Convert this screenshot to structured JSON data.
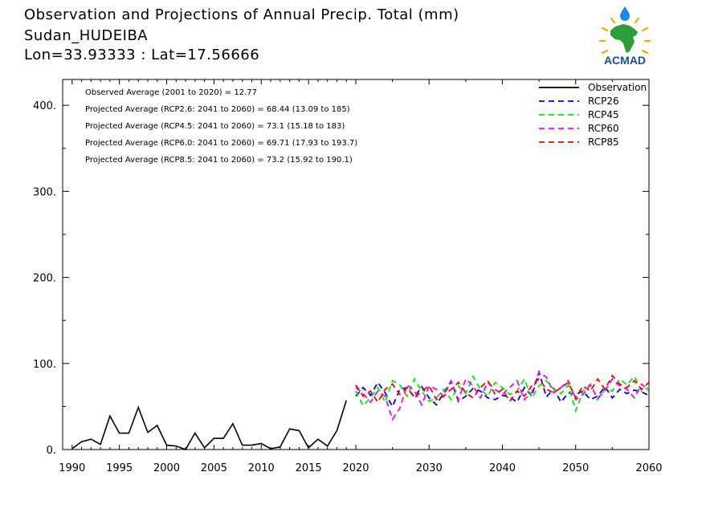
{
  "header": {
    "title": "Observation and Projections of Annual Precip. Total (mm)",
    "location": "Sudan_HUDEIBA",
    "coords": "Lon=33.93333 : Lat=17.56666"
  },
  "logo": {
    "text": "ACMAD",
    "icon": "africa-raindrop-logo"
  },
  "colors": {
    "observation": "#000000",
    "RCP26": "#0000ff",
    "RCP45": "#00ee00",
    "RCP60": "#ff00ff",
    "RCP85": "#ff0000"
  },
  "chart_data": {
    "type": "line",
    "xlim": [
      1989,
      2060
    ],
    "ylim": [
      0,
      430
    ],
    "xticks": [
      1990,
      1995,
      2000,
      2005,
      2010,
      2015,
      2020,
      2030,
      2040,
      2050,
      2060
    ],
    "yticks": [
      0,
      100,
      200,
      300,
      400
    ],
    "ytick_labels": [
      "0.",
      "100.",
      "200.",
      "300.",
      "400."
    ],
    "annotations": [
      "Observed Average (2001 to 2020) = 12.77",
      "Projected Average (RCP2.6: 2041 to 2060) = 68.44 (13.09 to 185)",
      "Projected Average (RCP4.5: 2041 to 2060) = 73.1 (15.18 to 183)",
      "Projected Average (RCP6.0: 2041 to 2060) = 69.71 (17.93 to 193.7)",
      "Projected Average (RCP8.5: 2041 to 2060) = 73.2 (15.92 to 190.1)"
    ],
    "legend_position": "top-right",
    "series": [
      {
        "name": "Observation",
        "key": "observation",
        "dashed": false,
        "x_start": 1990,
        "values": [
          1,
          9,
          12,
          6,
          39,
          19,
          19,
          49,
          20,
          28,
          5,
          4,
          0,
          19,
          2,
          13,
          13,
          30,
          5,
          5,
          7,
          1,
          3,
          24,
          22,
          2,
          12,
          4,
          22,
          57
        ]
      },
      {
        "name": "RCP26",
        "key": "RCP26",
        "dashed": true,
        "x_start": 2020,
        "values": [
          62,
          72,
          63,
          78,
          66,
          50,
          70,
          72,
          61,
          73,
          60,
          52,
          66,
          79,
          56,
          62,
          71,
          68,
          60,
          58,
          63,
          61,
          55,
          72,
          62,
          90,
          61,
          71,
          55,
          66,
          64,
          68,
          58,
          62,
          73,
          60,
          70,
          65,
          69,
          67,
          63
        ]
      },
      {
        "name": "RCP45",
        "key": "RCP45",
        "dashed": true,
        "x_start": 2020,
        "values": [
          68,
          51,
          60,
          72,
          55,
          80,
          75,
          62,
          82,
          68,
          56,
          60,
          70,
          58,
          74,
          65,
          85,
          70,
          62,
          78,
          72,
          64,
          68,
          82,
          60,
          74,
          80,
          70,
          65,
          75,
          45,
          68,
          76,
          58,
          70,
          68,
          82,
          75,
          85,
          68,
          72
        ]
      },
      {
        "name": "RCP60",
        "key": "RCP60",
        "dashed": true,
        "x_start": 2020,
        "values": [
          72,
          65,
          55,
          68,
          62,
          35,
          48,
          75,
          68,
          52,
          74,
          70,
          62,
          80,
          58,
          82,
          74,
          60,
          78,
          70,
          64,
          72,
          80,
          58,
          66,
          90,
          84,
          66,
          72,
          80,
          58,
          64,
          75,
          60,
          68,
          82,
          74,
          70,
          60,
          76,
          68
        ]
      },
      {
        "name": "RCP85",
        "key": "RCP85",
        "dashed": true,
        "x_start": 2020,
        "values": [
          75,
          62,
          68,
          55,
          70,
          76,
          64,
          72,
          60,
          68,
          74,
          58,
          62,
          70,
          78,
          66,
          60,
          72,
          80,
          64,
          70,
          56,
          68,
          62,
          74,
          82,
          70,
          66,
          72,
          78,
          60,
          74,
          68,
          82,
          70,
          86,
          76,
          72,
          80,
          70,
          78
        ]
      }
    ]
  }
}
